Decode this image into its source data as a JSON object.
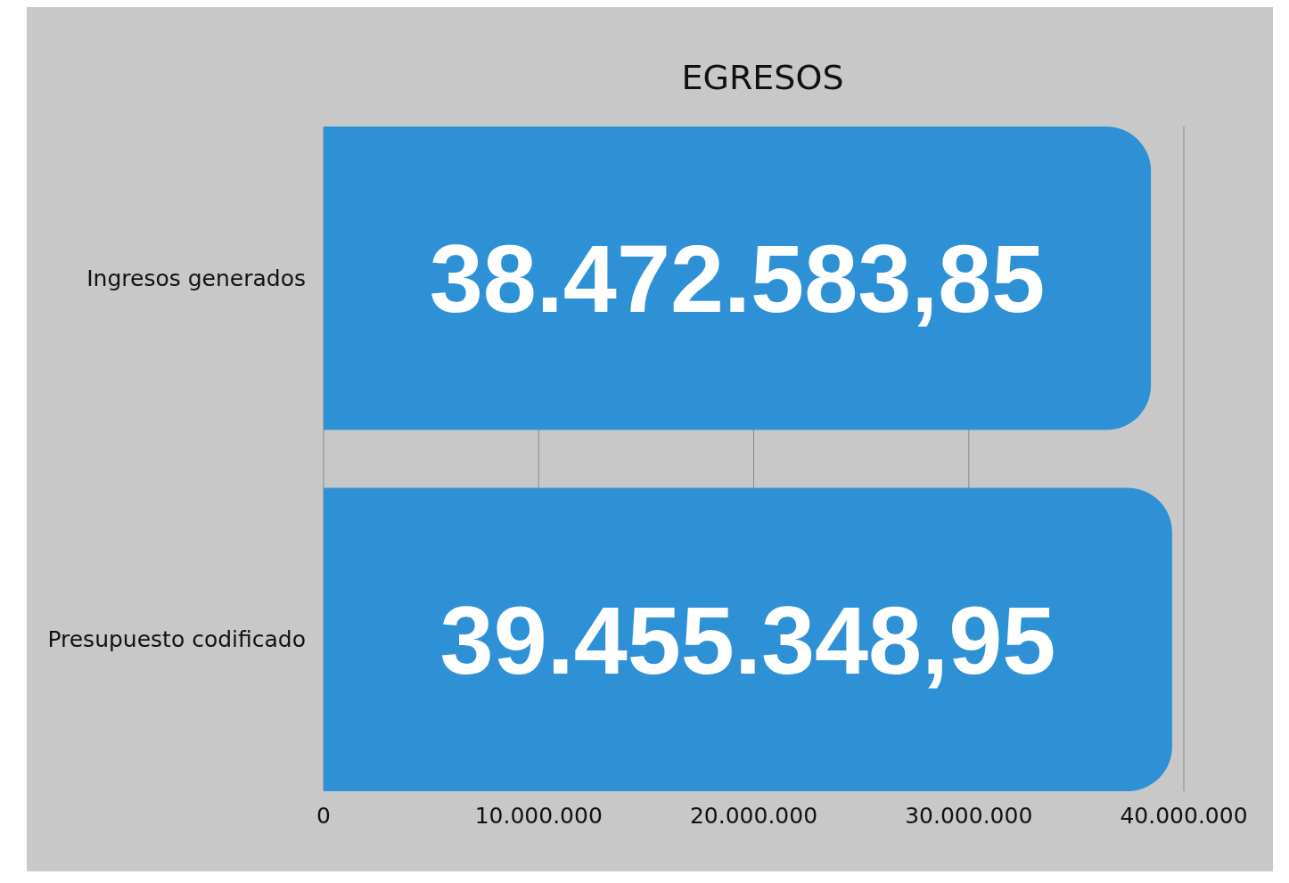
{
  "chart_data": {
    "type": "bar",
    "orientation": "horizontal",
    "title": "EGRESOS",
    "categories": [
      "Ingresos generados",
      "Presupuesto codificado"
    ],
    "values": [
      38472583.85,
      39455348.95
    ],
    "value_labels": [
      "38.472.583,85",
      "39.455.348,95"
    ],
    "color": "#2e91d6",
    "xlim": [
      0,
      40000000
    ],
    "xticks": [
      0,
      {
        "value": 10000000,
        "label": "10.000.000"
      },
      {
        "value": 20000000,
        "label": "20.000.000"
      },
      {
        "value": 30000000,
        "label": "30.000.000"
      },
      {
        "value": 40000000,
        "label": "40.000.000"
      }
    ],
    "grid": "x"
  }
}
